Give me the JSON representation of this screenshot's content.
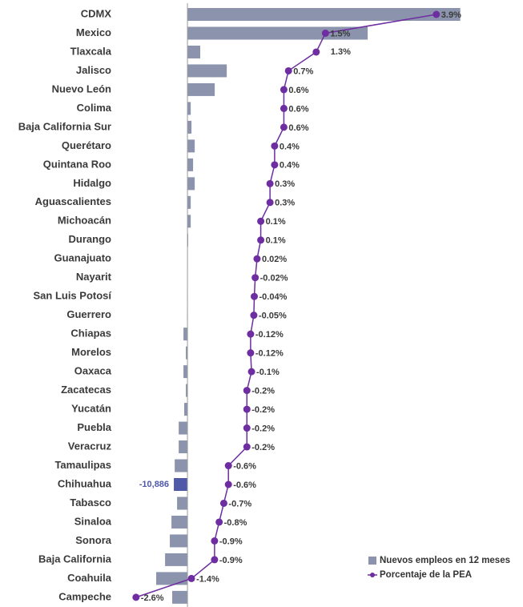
{
  "chart_data": {
    "type": "bar_line",
    "categories": [
      "CDMX",
      "Mexico",
      "Tlaxcala",
      "Jalisco",
      "Nuevo León",
      "Colima",
      "Baja California Sur",
      "Querétaro",
      "Quintana Roo",
      "Hidalgo",
      "Aguascalientes",
      "Michoacán",
      "Durango",
      "Guanajuato",
      "Nayarit",
      "San Luis Potosí",
      "Guerrero",
      "Chiapas",
      "Morelos",
      "Oaxaca",
      "Zacatecas",
      "Yucatán",
      "Puebla",
      "Veracruz",
      "Tamaulipas",
      "Chihuahua",
      "Tabasco",
      "Sinaloa",
      "Sonora",
      "Baja California",
      "Coahuila",
      "Campeche"
    ],
    "xlim": [
      -47400,
      221400
    ],
    "x2lim": [
      -2.77,
      4.51
    ],
    "legend": "bottom-right",
    "series": [
      {
        "name": "Nuevos empleos en 12 meses",
        "color": "#8c94ad",
        "colors": [
          "#8c94ad",
          "#8c94ad",
          "#8c94ad",
          "#8c94ad",
          "#8c94ad",
          "#8c94ad",
          "#8c94ad",
          "#8c94ad",
          "#8c94ad",
          "#8c94ad",
          "#8c94ad",
          "#8c94ad",
          "#8c94ad",
          "#8c94ad",
          "#8c94ad",
          "#8c94ad",
          "#8c94ad",
          "#8c94ad",
          "#8c94ad",
          "#8c94ad",
          "#8c94ad",
          "#8c94ad",
          "#8c94ad",
          "#8c94ad",
          "#8c94ad",
          "#5058a8",
          "#8c94ad",
          "#8c94ad",
          "#8c94ad",
          "#8c94ad",
          "#8c94ad",
          "#8c94ad"
        ],
        "values": [
          218000,
          144000,
          10200,
          31400,
          21800,
          2600,
          3200,
          5800,
          4500,
          5800,
          2600,
          2600,
          600,
          300,
          -100,
          -200,
          -300,
          -3200,
          -1300,
          -3200,
          -1300,
          -2600,
          -7000,
          -7000,
          -10200,
          -10886,
          -8300,
          -12800,
          -14100,
          -17900,
          -25000,
          -12200
        ],
        "value_labels": [
          null,
          null,
          null,
          null,
          null,
          null,
          null,
          null,
          null,
          null,
          null,
          null,
          null,
          null,
          null,
          null,
          null,
          null,
          null,
          null,
          null,
          null,
          null,
          null,
          null,
          "-10,886",
          null,
          null,
          null,
          null,
          null,
          null
        ]
      },
      {
        "name": "Porcentaje de la PEA",
        "color": "#6e2da0",
        "axis": "x2",
        "values": [
          3.9,
          1.5,
          1.3,
          0.7,
          0.6,
          0.6,
          0.6,
          0.4,
          0.4,
          0.3,
          0.3,
          0.1,
          0.1,
          0.02,
          -0.02,
          -0.04,
          -0.05,
          -0.12,
          -0.12,
          -0.1,
          -0.2,
          -0.2,
          -0.2,
          -0.2,
          -0.6,
          -0.6,
          -0.7,
          -0.8,
          -0.9,
          -0.9,
          -1.4,
          -2.6
        ],
        "value_labels": [
          "3.9%",
          "1.5%",
          "1.3%",
          "0.7%",
          "0.6%",
          "0.6%",
          "0.6%",
          "0.4%",
          "0.4%",
          "0.3%",
          "0.3%",
          "0.1%",
          "0.1%",
          "0.02%",
          "-0.02%",
          "-0.04%",
          "-0.05%",
          "-0.12%",
          "-0.12%",
          "-0.1%",
          "-0.2%",
          "-0.2%",
          "-0.2%",
          "-0.2%",
          "-0.6%",
          "-0.6%",
          "-0.7%",
          "-0.8%",
          "-0.9%",
          "-0.9%",
          "-1.4%",
          "-2.6%"
        ]
      }
    ]
  }
}
